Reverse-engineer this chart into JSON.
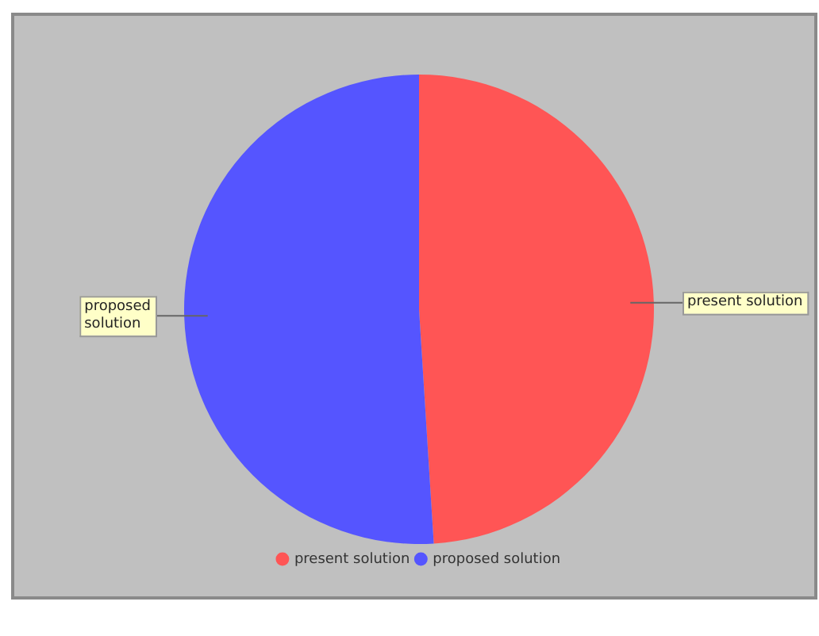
{
  "chart_data": {
    "type": "pie",
    "categories": [
      "present solution",
      "proposed solution"
    ],
    "values": [
      49,
      51
    ],
    "colors": [
      "#ff5555",
      "#5555ff"
    ],
    "legend": "bottom"
  }
}
